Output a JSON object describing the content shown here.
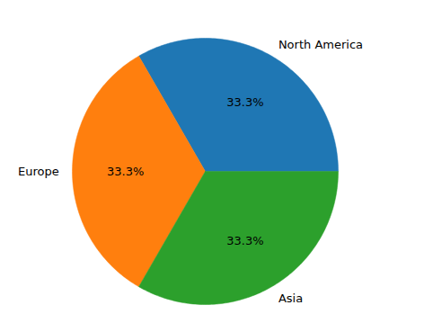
{
  "chart_data": {
    "type": "pie",
    "categories": [
      "North America",
      "Europe",
      "Asia"
    ],
    "values": [
      33.3,
      33.3,
      33.3
    ],
    "value_labels": [
      "33.3%",
      "33.3%",
      "33.3%"
    ],
    "colors": [
      "#1f77b4",
      "#ff7f0e",
      "#2ca02c"
    ],
    "data_labels": true
  }
}
